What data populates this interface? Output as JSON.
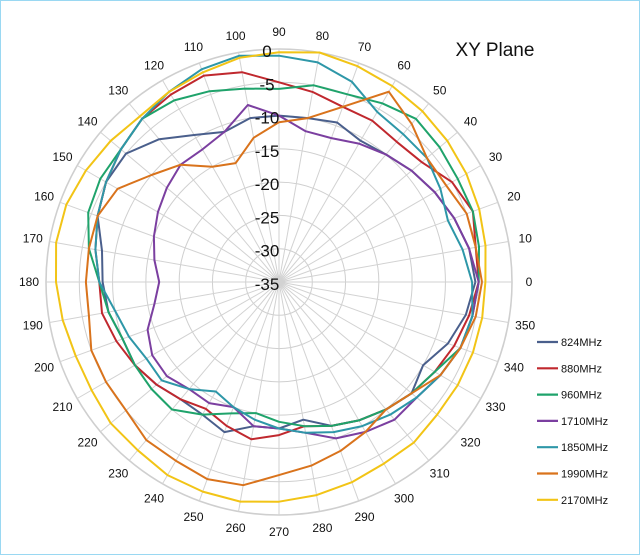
{
  "chart_data": {
    "type": "polar-line",
    "title": "XY  Plane",
    "radial_axis": {
      "range": [
        -35,
        0
      ],
      "tick_values": [
        0,
        -5,
        -10,
        -15,
        -20,
        -25,
        -30,
        -35
      ],
      "tick_labels": [
        "0",
        "-5",
        "-10",
        "-15",
        "-20",
        "-25",
        "-30",
        "-35"
      ]
    },
    "angular_axis": {
      "unit": "degrees",
      "step": 10,
      "tick_labels": [
        "0",
        "10",
        "20",
        "30",
        "40",
        "50",
        "60",
        "70",
        "80",
        "90",
        "100",
        "110",
        "120",
        "130",
        "140",
        "150",
        "160",
        "170",
        "180",
        "190",
        "200",
        "210",
        "220",
        "230",
        "240",
        "250",
        "260",
        "270",
        "280",
        "290",
        "300",
        "310",
        "320",
        "330",
        "340",
        "350"
      ]
    },
    "grid": true,
    "legend_position": "right",
    "angles": [
      0,
      10,
      20,
      30,
      40,
      50,
      60,
      70,
      80,
      90,
      100,
      110,
      120,
      130,
      140,
      150,
      160,
      170,
      180,
      190,
      200,
      210,
      220,
      230,
      240,
      250,
      260,
      270,
      280,
      290,
      300,
      310,
      320,
      330,
      340,
      350,
      360
    ],
    "series": [
      {
        "name": "824MHz",
        "color": "#4a5f8c",
        "values": [
          -5.5,
          -6,
          -7,
          -8,
          -9,
          -10,
          -10.5,
          -9.5,
          -10,
          -10,
          -10,
          -11,
          -9.5,
          -7,
          -5,
          -5,
          -6,
          -8,
          -8.5,
          -9,
          -10,
          -10,
          -11,
          -12,
          -12,
          -11,
          -13,
          -13,
          -14,
          -12,
          -11,
          -10,
          -9,
          -10,
          -8,
          -6.5,
          -5.5
        ]
      },
      {
        "name": "880MHz",
        "color": "#c0282e",
        "values": [
          -5,
          -5,
          -4,
          -5,
          -7,
          -7.5,
          -7,
          -7,
          -6,
          -5,
          -3,
          -2,
          -2.5,
          -3,
          -4,
          -5,
          -6,
          -7,
          -8,
          -8,
          -9,
          -10,
          -11,
          -12,
          -13,
          -12,
          -11,
          -12,
          -13,
          -12,
          -11,
          -10,
          -9,
          -8,
          -7,
          -6,
          -5
        ]
      },
      {
        "name": "960MHz",
        "color": "#1fa36b",
        "values": [
          -5,
          -4.5,
          -4,
          -4,
          -3.5,
          -3,
          -4,
          -5,
          -5,
          -6,
          -5.5,
          -4.5,
          -3.5,
          -3,
          -4,
          -4,
          -4.5,
          -6,
          -8,
          -9,
          -10,
          -10,
          -10,
          -10,
          -12,
          -14,
          -15,
          -14,
          -13,
          -12,
          -11,
          -10,
          -9,
          -8,
          -6,
          -5.5,
          -5
        ]
      },
      {
        "name": "1710MHz",
        "color": "#7b3fa0",
        "values": [
          -5,
          -6,
          -7,
          -8,
          -9,
          -10,
          -11,
          -12,
          -12,
          -10,
          -8,
          -11,
          -12,
          -12,
          -13,
          -14,
          -15,
          -16,
          -17,
          -16,
          -14,
          -13,
          -13,
          -14,
          -14,
          -15,
          -13,
          -13,
          -12,
          -10,
          -9,
          -8,
          -8,
          -7,
          -6,
          -5.5,
          -5
        ]
      },
      {
        "name": "1850MHz",
        "color": "#2e97a8",
        "values": [
          -6,
          -7,
          -8,
          -7,
          -6,
          -6,
          -5.5,
          -3,
          -1.5,
          -1,
          -0.5,
          -1,
          -2,
          -3,
          -4,
          -5,
          -6,
          -7,
          -8,
          -10,
          -11,
          -12,
          -12,
          -14,
          -16,
          -15,
          -14,
          -13,
          -12,
          -11,
          -10,
          -9,
          -8,
          -7,
          -6,
          -5.5,
          -6
        ]
      },
      {
        "name": "1990MHz",
        "color": "#d9731c",
        "values": [
          -4.5,
          -5,
          -5,
          -6,
          -6,
          -4,
          -2,
          -7,
          -10,
          -11,
          -13,
          -16,
          -15,
          -12,
          -10,
          -7,
          -6,
          -6,
          -6,
          -6,
          -5,
          -5,
          -5,
          -4,
          -4,
          -3.5,
          -4,
          -6,
          -7,
          -8,
          -9,
          -10,
          -9,
          -7,
          -6,
          -5,
          -4.5
        ]
      },
      {
        "name": "2170MHz",
        "color": "#f2c416",
        "values": [
          -4,
          -3.5,
          -3,
          -2.5,
          -2,
          -1.5,
          -1,
          -0.5,
          0,
          -0.5,
          -0.8,
          -1.5,
          -2,
          -2.5,
          -2,
          -1.5,
          -1,
          -1,
          -1.5,
          -2,
          -2.5,
          -2.5,
          -2,
          -2,
          -1.5,
          -1.5,
          -1.5,
          -2,
          -2.5,
          -3,
          -3.5,
          -3.5,
          -4,
          -4,
          -4,
          -4,
          -4
        ]
      }
    ]
  }
}
